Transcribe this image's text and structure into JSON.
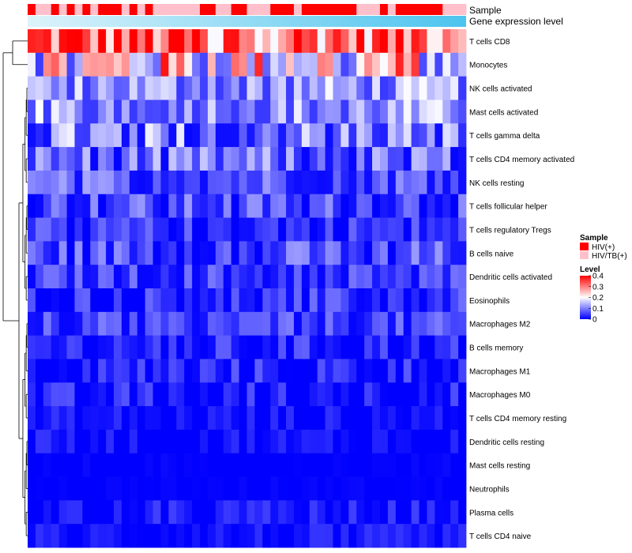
{
  "chart_data": {
    "type": "heatmap",
    "title": "",
    "annotation_tracks": [
      {
        "name": "Sample",
        "values": [
          "HIV(+)",
          "HIV/TB(+)",
          "HIV/TB(+)",
          "HIV(+)",
          "HIV/TB(+)",
          "HIV(+)",
          "HIV/TB(+)",
          "HIV(+)",
          "HIV/TB(+)",
          "HIV(+)",
          "HIV(+)",
          "HIV(+)",
          "HIV/TB(+)",
          "HIV(+)",
          "HIV/TB(+)",
          "HIV(+)",
          "HIV/TB(+)",
          "HIV/TB(+)",
          "HIV/TB(+)",
          "HIV/TB(+)",
          "HIV/TB(+)",
          "HIV/TB(+)",
          "HIV(+)",
          "HIV(+)",
          "HIV/TB(+)",
          "HIV/TB(+)",
          "HIV(+)",
          "HIV(+)",
          "HIV/TB(+)",
          "HIV/TB(+)",
          "HIV/TB(+)",
          "HIV(+)",
          "HIV(+)",
          "HIV(+)",
          "HIV/TB(+)",
          "HIV(+)",
          "HIV(+)",
          "HIV(+)",
          "HIV(+)",
          "HIV(+)",
          "HIV(+)",
          "HIV(+)",
          "HIV/TB(+)",
          "HIV/TB(+)",
          "HIV/TB(+)",
          "HIV(+)",
          "HIV/TB(+)",
          "HIV(+)",
          "HIV(+)",
          "HIV(+)",
          "HIV(+)",
          "HIV(+)",
          "HIV(+)",
          "HIV/TB(+)",
          "HIV/TB(+)",
          "HIV/TB(+)"
        ]
      },
      {
        "name": "Gene expression level",
        "gradient": [
          "#ddf3fb",
          "#4cc4ee"
        ]
      }
    ],
    "rows": [
      "T cells CD8",
      "Monocytes",
      "NK cells activated",
      "Mast cells activated",
      "T cells gamma delta",
      "T cells CD4 memory activated",
      "NK cells resting",
      "T cells follicular helper",
      "T cells regulatory  Tregs",
      "B cells naive",
      "Dendritic cells activated",
      "Eosinophils",
      "Macrophages M2",
      "B cells memory",
      "Macrophages M1",
      "Macrophages M0",
      "T cells CD4 memory resting",
      "Dendritic cells resting",
      "Mast cells resting",
      "Neutrophils",
      "Plasma cells",
      "T cells CD4 naive"
    ],
    "n_columns": 56,
    "row_means": [
      0.33,
      0.22,
      0.12,
      0.12,
      0.1,
      0.08,
      0.07,
      0.06,
      0.04,
      0.06,
      0.05,
      0.04,
      0.05,
      0.03,
      0.03,
      0.02,
      0.01,
      0.01,
      0.0,
      0.0,
      0.02,
      0.01
    ],
    "row_spread": [
      0.09,
      0.11,
      0.05,
      0.05,
      0.06,
      0.05,
      0.04,
      0.04,
      0.03,
      0.04,
      0.03,
      0.03,
      0.03,
      0.03,
      0.03,
      0.03,
      0.02,
      0.02,
      0.005,
      0.005,
      0.02,
      0.02
    ],
    "color_scale": {
      "low": "#0000ff",
      "mid": "#ffffff",
      "high": "#ff0000",
      "min": 0,
      "mid_value": 0.2,
      "max": 0.4
    },
    "legend": {
      "sample_title": "Sample",
      "sample_items": [
        {
          "label": "HIV(+)",
          "color": "#ff0000"
        },
        {
          "label": "HIV/TB(+)",
          "color": "#ffc0cb"
        }
      ],
      "level_title": "Level",
      "level_ticks": [
        "0.4",
        "0.3",
        "0.2",
        "0.1",
        "0"
      ],
      "level_tick_values": [
        0.4,
        0.3,
        0.2,
        0.1,
        0
      ]
    },
    "dendrogram": "row clustering",
    "legend_position": "right"
  }
}
